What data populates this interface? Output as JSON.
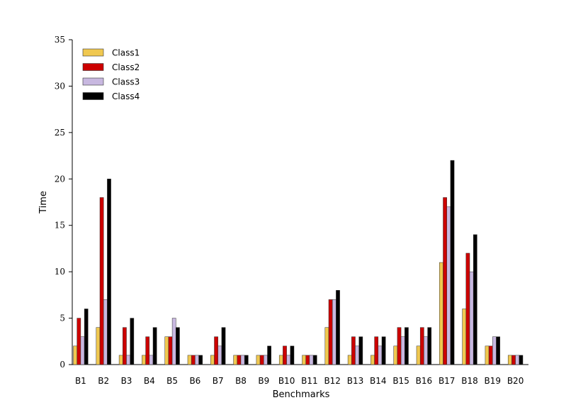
{
  "chart_data": {
    "type": "bar",
    "title": "",
    "xlabel": "Benchmarks",
    "ylabel": "Time",
    "ylim": [
      0,
      35
    ],
    "yticks": [
      0,
      5,
      10,
      15,
      20,
      25,
      30,
      35
    ],
    "grid": false,
    "legend_position": "top-left",
    "categories": [
      "B1",
      "B2",
      "B3",
      "B4",
      "B5",
      "B6",
      "B7",
      "B8",
      "B9",
      "B10",
      "B11",
      "B12",
      "B13",
      "B14",
      "B15",
      "B16",
      "B17",
      "B18",
      "B19",
      "B20"
    ],
    "series": [
      {
        "name": "Class1",
        "color": "#f0c850",
        "values": [
          2,
          4,
          1,
          1,
          3,
          1,
          1,
          1,
          1,
          1,
          1,
          4,
          1,
          1,
          2,
          2,
          11,
          6,
          2,
          1
        ]
      },
      {
        "name": "Class2",
        "color": "#cc0000",
        "values": [
          5,
          18,
          4,
          3,
          3,
          1,
          3,
          1,
          1,
          2,
          1,
          7,
          3,
          3,
          4,
          4,
          18,
          12,
          2,
          1
        ]
      },
      {
        "name": "Class3",
        "color": "#c8b8e0",
        "values": [
          3,
          7,
          1,
          1,
          5,
          1,
          2,
          1,
          1,
          1,
          1,
          7,
          2,
          2,
          3,
          3,
          17,
          10,
          3,
          1
        ]
      },
      {
        "name": "Class4",
        "color": "#000000",
        "values": [
          6,
          20,
          5,
          4,
          4,
          1,
          4,
          1,
          2,
          2,
          1,
          8,
          3,
          3,
          4,
          4,
          22,
          14,
          3,
          1
        ]
      }
    ]
  }
}
